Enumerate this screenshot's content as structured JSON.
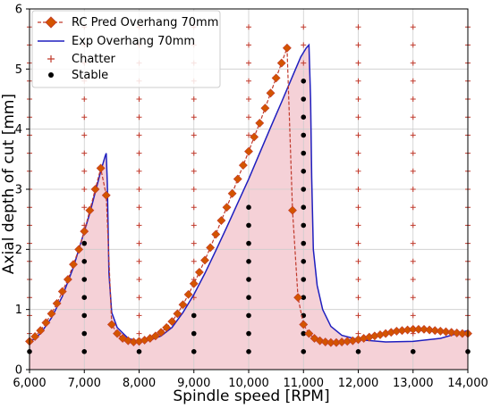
{
  "chart_data": {
    "type": "line",
    "xlabel": "Spindle speed [RPM]",
    "ylabel": "Axial depth of cut [mm]",
    "xlim": [
      6000,
      14000
    ],
    "ylim": [
      0,
      6
    ],
    "grid": true,
    "legend_placement": "top-left",
    "x_ticks": [
      6000,
      7000,
      8000,
      9000,
      10000,
      11000,
      12000,
      13000,
      14000
    ],
    "x_tick_labels": [
      "6,000",
      "7,000",
      "8,000",
      "9,000",
      "10,000",
      "11,000",
      "12,000",
      "13,000",
      "14,000"
    ],
    "y_ticks": [
      0,
      1,
      2,
      3,
      4,
      5,
      6
    ],
    "y_tick_labels": [
      "0",
      "1",
      "2",
      "3",
      "4",
      "5",
      "6"
    ],
    "colors": {
      "rc_pred_line": "#c0392b",
      "rc_pred_marker": "#d35400",
      "exp_line": "#1f1fbf",
      "fill": "#f2c2ca",
      "chatter": "#c0392b",
      "stable": "#000000",
      "grid": "#cccccc"
    },
    "series": [
      {
        "name": "RC Pred Overhang 70mm",
        "kind": "dashed-line-diamond-markers",
        "x": [
          6000,
          6100,
          6200,
          6300,
          6400,
          6500,
          6600,
          6700,
          6800,
          6900,
          7000,
          7100,
          7200,
          7300,
          7400,
          7500,
          7600,
          7700,
          7800,
          7900,
          8000,
          8100,
          8200,
          8300,
          8400,
          8500,
          8600,
          8700,
          8800,
          8900,
          9000,
          9100,
          9200,
          9300,
          9400,
          9500,
          9600,
          9700,
          9800,
          9900,
          10000,
          10100,
          10200,
          10300,
          10400,
          10500,
          10600,
          10700,
          10800,
          10900,
          11000,
          11100,
          11200,
          11300,
          11400,
          11500,
          11600,
          11700,
          11800,
          11900,
          12000,
          12100,
          12200,
          12300,
          12400,
          12500,
          12600,
          12700,
          12800,
          12900,
          13000,
          13100,
          13200,
          13300,
          13400,
          13500,
          13600,
          13700,
          13800,
          13900,
          14000
        ],
        "y": [
          0.47,
          0.55,
          0.65,
          0.78,
          0.93,
          1.1,
          1.3,
          1.5,
          1.75,
          2.0,
          2.3,
          2.65,
          3.0,
          3.35,
          2.9,
          0.75,
          0.6,
          0.52,
          0.48,
          0.46,
          0.47,
          0.49,
          0.52,
          0.56,
          0.62,
          0.7,
          0.8,
          0.93,
          1.08,
          1.25,
          1.43,
          1.62,
          1.82,
          2.03,
          2.25,
          2.48,
          2.7,
          2.93,
          3.17,
          3.4,
          3.63,
          3.87,
          4.1,
          4.35,
          4.6,
          4.85,
          5.1,
          5.35,
          2.65,
          1.2,
          0.75,
          0.6,
          0.52,
          0.48,
          0.46,
          0.45,
          0.45,
          0.46,
          0.47,
          0.48,
          0.5,
          0.52,
          0.54,
          0.56,
          0.58,
          0.6,
          0.62,
          0.64,
          0.65,
          0.66,
          0.67,
          0.67,
          0.67,
          0.66,
          0.65,
          0.64,
          0.63,
          0.62,
          0.61,
          0.6,
          0.6
        ]
      },
      {
        "name": "Exp Overhang 70mm",
        "kind": "solid-line",
        "x": [
          6000,
          6200,
          6400,
          6600,
          6800,
          7000,
          7100,
          7200,
          7300,
          7380,
          7400,
          7420,
          7450,
          7500,
          7600,
          7800,
          8000,
          8200,
          8400,
          8600,
          8800,
          9000,
          9200,
          9400,
          9600,
          9800,
          10000,
          10200,
          10400,
          10600,
          10800,
          10950,
          11050,
          11100,
          11130,
          11150,
          11180,
          11250,
          11350,
          11500,
          11700,
          12000,
          12500,
          13000,
          13500,
          14000
        ],
        "y": [
          0.45,
          0.6,
          0.86,
          1.22,
          1.7,
          2.3,
          2.6,
          2.95,
          3.3,
          3.55,
          3.6,
          3.1,
          1.6,
          0.95,
          0.7,
          0.52,
          0.47,
          0.49,
          0.56,
          0.7,
          0.95,
          1.25,
          1.6,
          1.98,
          2.37,
          2.77,
          3.17,
          3.6,
          4.03,
          4.45,
          4.88,
          5.2,
          5.35,
          5.4,
          4.5,
          3.2,
          2.0,
          1.4,
          1.0,
          0.72,
          0.57,
          0.5,
          0.46,
          0.47,
          0.52,
          0.65
        ]
      },
      {
        "name": "Chatter",
        "kind": "plus-markers",
        "points": [
          [
            6000,
            0.6
          ],
          [
            6000,
            0.9
          ],
          [
            6000,
            1.2
          ],
          [
            6000,
            1.5
          ],
          [
            6000,
            1.8
          ],
          [
            6000,
            2.1
          ],
          [
            6000,
            2.4
          ],
          [
            6000,
            2.7
          ],
          [
            6000,
            3.0
          ],
          [
            6000,
            3.3
          ],
          [
            6000,
            3.6
          ],
          [
            6000,
            3.9
          ],
          [
            6000,
            4.2
          ],
          [
            6000,
            4.5
          ],
          [
            6000,
            4.8
          ],
          [
            6000,
            5.1
          ],
          [
            6000,
            5.4
          ],
          [
            6000,
            5.7
          ],
          [
            7000,
            2.4
          ],
          [
            7000,
            2.7
          ],
          [
            7000,
            3.0
          ],
          [
            7000,
            3.3
          ],
          [
            7000,
            3.6
          ],
          [
            7000,
            3.9
          ],
          [
            7000,
            4.2
          ],
          [
            7000,
            4.5
          ],
          [
            7000,
            4.8
          ],
          [
            7000,
            5.1
          ],
          [
            7000,
            5.4
          ],
          [
            7000,
            5.7
          ],
          [
            8000,
            0.6
          ],
          [
            8000,
            0.9
          ],
          [
            8000,
            1.2
          ],
          [
            8000,
            1.5
          ],
          [
            8000,
            1.8
          ],
          [
            8000,
            2.1
          ],
          [
            8000,
            2.4
          ],
          [
            8000,
            2.7
          ],
          [
            8000,
            3.0
          ],
          [
            8000,
            3.3
          ],
          [
            8000,
            3.6
          ],
          [
            8000,
            3.9
          ],
          [
            8000,
            4.2
          ],
          [
            8000,
            4.5
          ],
          [
            8000,
            4.8
          ],
          [
            8000,
            5.1
          ],
          [
            8000,
            5.4
          ],
          [
            8000,
            5.7
          ],
          [
            9000,
            1.2
          ],
          [
            9000,
            1.5
          ],
          [
            9000,
            1.8
          ],
          [
            9000,
            2.1
          ],
          [
            9000,
            2.4
          ],
          [
            9000,
            2.7
          ],
          [
            9000,
            3.0
          ],
          [
            9000,
            3.3
          ],
          [
            9000,
            3.6
          ],
          [
            9000,
            3.9
          ],
          [
            9000,
            4.2
          ],
          [
            9000,
            4.5
          ],
          [
            9000,
            4.8
          ],
          [
            9000,
            5.1
          ],
          [
            9000,
            5.4
          ],
          [
            9000,
            5.7
          ],
          [
            10000,
            3.9
          ],
          [
            10000,
            4.2
          ],
          [
            10000,
            4.5
          ],
          [
            10000,
            4.8
          ],
          [
            10000,
            5.1
          ],
          [
            10000,
            5.4
          ],
          [
            10000,
            5.7
          ],
          [
            11000,
            5.1
          ],
          [
            11000,
            5.4
          ],
          [
            11000,
            5.7
          ],
          [
            12000,
            0.6
          ],
          [
            12000,
            0.9
          ],
          [
            12000,
            1.2
          ],
          [
            12000,
            1.5
          ],
          [
            12000,
            1.8
          ],
          [
            12000,
            2.1
          ],
          [
            12000,
            2.4
          ],
          [
            12000,
            2.7
          ],
          [
            12000,
            3.0
          ],
          [
            12000,
            3.3
          ],
          [
            12000,
            3.6
          ],
          [
            12000,
            3.9
          ],
          [
            12000,
            4.2
          ],
          [
            12000,
            4.5
          ],
          [
            12000,
            4.8
          ],
          [
            12000,
            5.1
          ],
          [
            12000,
            5.4
          ],
          [
            12000,
            5.7
          ],
          [
            13000,
            0.6
          ],
          [
            13000,
            0.9
          ],
          [
            13000,
            1.2
          ],
          [
            13000,
            1.5
          ],
          [
            13000,
            1.8
          ],
          [
            13000,
            2.1
          ],
          [
            13000,
            2.4
          ],
          [
            13000,
            2.7
          ],
          [
            13000,
            3.0
          ],
          [
            13000,
            3.3
          ],
          [
            13000,
            3.6
          ],
          [
            13000,
            3.9
          ],
          [
            13000,
            4.2
          ],
          [
            13000,
            4.5
          ],
          [
            13000,
            4.8
          ],
          [
            13000,
            5.1
          ],
          [
            13000,
            5.4
          ],
          [
            13000,
            5.7
          ],
          [
            14000,
            0.9
          ],
          [
            14000,
            1.2
          ],
          [
            14000,
            1.5
          ],
          [
            14000,
            1.8
          ],
          [
            14000,
            2.1
          ],
          [
            14000,
            2.4
          ],
          [
            14000,
            2.7
          ],
          [
            14000,
            3.0
          ],
          [
            14000,
            3.3
          ],
          [
            14000,
            3.6
          ],
          [
            14000,
            3.9
          ],
          [
            14000,
            4.2
          ],
          [
            14000,
            4.5
          ],
          [
            14000,
            4.8
          ],
          [
            14000,
            5.1
          ],
          [
            14000,
            5.4
          ],
          [
            14000,
            5.7
          ]
        ]
      },
      {
        "name": "Stable",
        "kind": "dot-markers",
        "points": [
          [
            6000,
            0.3
          ],
          [
            7000,
            0.3
          ],
          [
            7000,
            0.6
          ],
          [
            7000,
            0.9
          ],
          [
            7000,
            1.2
          ],
          [
            7000,
            1.5
          ],
          [
            7000,
            1.8
          ],
          [
            7000,
            2.1
          ],
          [
            8000,
            0.3
          ],
          [
            9000,
            0.3
          ],
          [
            9000,
            0.6
          ],
          [
            9000,
            0.9
          ],
          [
            10000,
            0.3
          ],
          [
            10000,
            0.6
          ],
          [
            10000,
            0.9
          ],
          [
            10000,
            1.2
          ],
          [
            10000,
            1.5
          ],
          [
            10000,
            1.8
          ],
          [
            10000,
            2.1
          ],
          [
            10000,
            2.4
          ],
          [
            10000,
            2.7
          ],
          [
            11000,
            0.3
          ],
          [
            11000,
            0.6
          ],
          [
            11000,
            0.9
          ],
          [
            11000,
            1.2
          ],
          [
            11000,
            1.5
          ],
          [
            11000,
            1.8
          ],
          [
            11000,
            2.1
          ],
          [
            11000,
            2.4
          ],
          [
            11000,
            2.7
          ],
          [
            11000,
            3.0
          ],
          [
            11000,
            3.3
          ],
          [
            11000,
            3.6
          ],
          [
            11000,
            3.9
          ],
          [
            11000,
            4.2
          ],
          [
            11000,
            4.5
          ],
          [
            11000,
            4.8
          ],
          [
            12000,
            0.3
          ],
          [
            13000,
            0.3
          ],
          [
            14000,
            0.3
          ]
        ]
      }
    ]
  }
}
